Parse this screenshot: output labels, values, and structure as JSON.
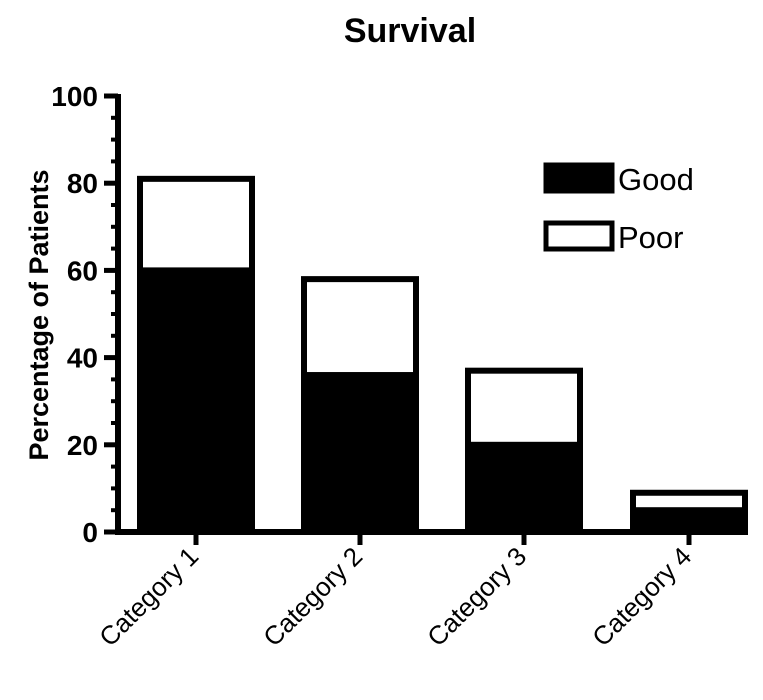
{
  "chart_data": {
    "type": "bar",
    "stacked": true,
    "title": "Survival",
    "xlabel": "",
    "ylabel": "Percentage of Patients",
    "ylim": [
      0,
      100
    ],
    "yticks": [
      "0",
      "20",
      "40",
      "60",
      "80",
      "100"
    ],
    "categories": [
      "Category 1",
      "Category 2",
      "Category 3",
      "Category 4"
    ],
    "series": [
      {
        "name": "Good",
        "values": [
          60,
          36,
          20,
          5
        ],
        "color": "#000000"
      },
      {
        "name": "Poor",
        "values": [
          21,
          22,
          17,
          4
        ],
        "color": "#ffffff"
      }
    ],
    "legend_position": "top-right",
    "grid": false
  }
}
